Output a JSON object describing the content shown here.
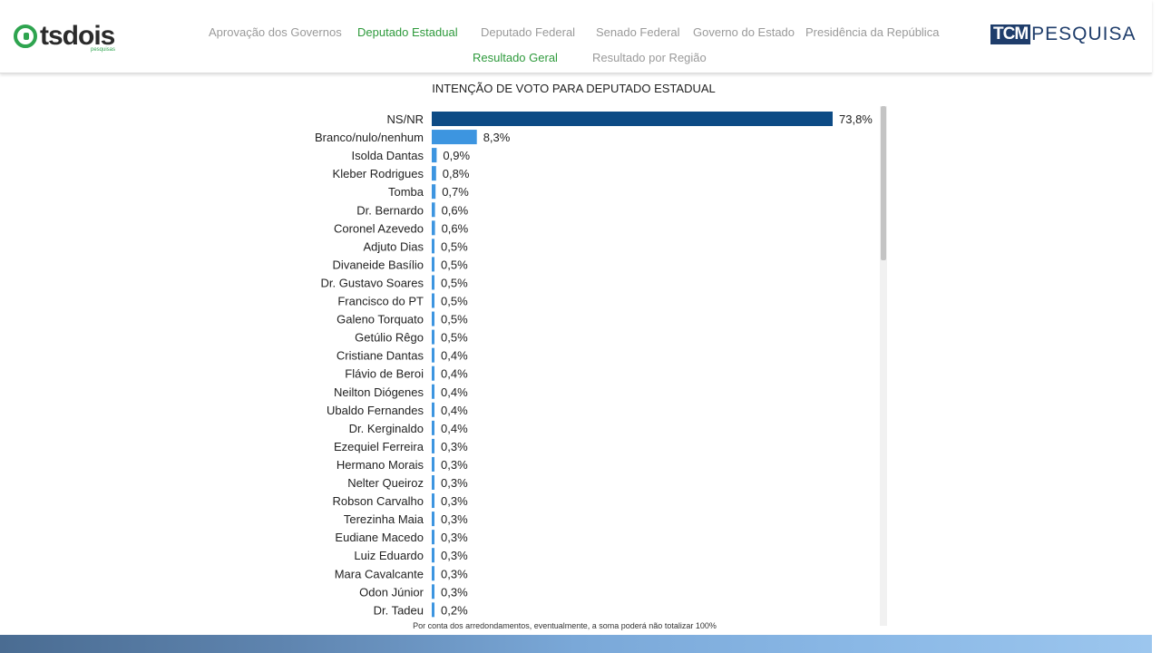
{
  "logo_left": {
    "text": "tsdois",
    "sub": "pesquisas"
  },
  "logo_right": {
    "box": "TCM",
    "text": "PESQUISA"
  },
  "nav": {
    "row1": [
      "Aprovação dos Governos",
      "Deputado Estadual",
      "Deputado Federal",
      "Senado Federal",
      "Governo do Estado",
      "Presidência da República"
    ],
    "row2": [
      "Resultado Geral",
      "Resultado por Região"
    ],
    "active": [
      "Deputado Estadual",
      "Resultado Geral"
    ]
  },
  "colors": {
    "dark_bar": "#0d4b85",
    "light_bar": "#3d95e0",
    "active_nav": "#2e9a3c"
  },
  "chart_data": {
    "type": "bar",
    "orientation": "horizontal",
    "title": "INTENÇÃO DE VOTO PARA DEPUTADO ESTADUAL",
    "categories": [
      "NS/NR",
      "Branco/nulo/nenhum",
      "Isolda Dantas",
      "Kleber Rodrigues",
      "Tomba",
      "Dr. Bernardo",
      "Coronel Azevedo",
      "Adjuto Dias",
      "Divaneide Basílio",
      "Dr. Gustavo Soares",
      "Francisco do PT",
      "Galeno Torquato",
      "Getúlio Rêgo",
      "Cristiane Dantas",
      "Flávio de Beroi",
      "Neilton Diógenes",
      "Ubaldo Fernandes",
      "Dr. Kerginaldo",
      "Ezequiel Ferreira",
      "Hermano Morais",
      "Nelter Queiroz",
      "Robson Carvalho",
      "Terezinha Maia",
      "Eudiane Macedo",
      "Luiz Eduardo",
      "Mara Cavalcante",
      "Odon Júnior",
      "Dr. Tadeu"
    ],
    "values": [
      73.8,
      8.3,
      0.9,
      0.8,
      0.7,
      0.6,
      0.6,
      0.5,
      0.5,
      0.5,
      0.5,
      0.5,
      0.5,
      0.4,
      0.4,
      0.4,
      0.4,
      0.4,
      0.3,
      0.3,
      0.3,
      0.3,
      0.3,
      0.3,
      0.3,
      0.3,
      0.3,
      0.2
    ],
    "labels": [
      "73,8%",
      "8,3%",
      "0,9%",
      "0,8%",
      "0,7%",
      "0,6%",
      "0,6%",
      "0,5%",
      "0,5%",
      "0,5%",
      "0,5%",
      "0,5%",
      "0,5%",
      "0,4%",
      "0,4%",
      "0,4%",
      "0,4%",
      "0,4%",
      "0,3%",
      "0,3%",
      "0,3%",
      "0,3%",
      "0,3%",
      "0,3%",
      "0,3%",
      "0,3%",
      "0,3%",
      "0,2%"
    ],
    "xlim": [
      0,
      73.8
    ],
    "grid": false,
    "footnote": "Por conta dos arredondamentos, eventualmente, a soma poderá não totalizar 100%"
  }
}
